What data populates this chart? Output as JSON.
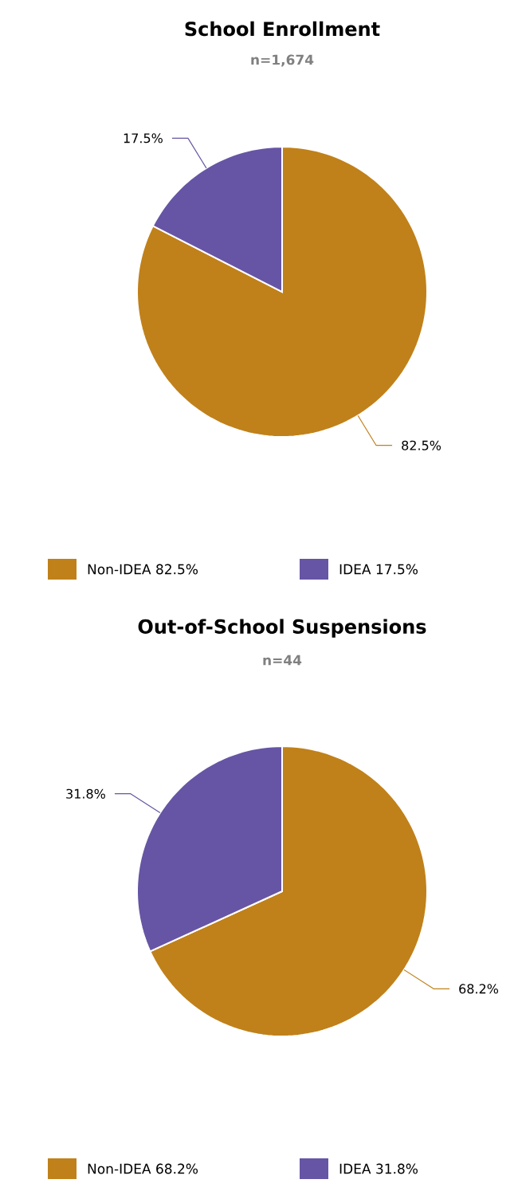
{
  "chart_data": [
    {
      "type": "pie",
      "title": "School Enrollment",
      "subtitle": "n=1,674",
      "categories": [
        "Non-IDEA",
        "IDEA"
      ],
      "values": [
        82.5,
        17.5
      ],
      "colors": [
        "#c0811a",
        "#6655a5"
      ],
      "value_labels": [
        "82.5%",
        "17.5%"
      ],
      "legend": "bottom"
    },
    {
      "type": "pie",
      "title": "Out-of-School Suspensions",
      "subtitle": "n=44",
      "categories": [
        "Non-IDEA",
        "IDEA"
      ],
      "values": [
        68.2,
        31.8
      ],
      "colors": [
        "#c0811a",
        "#6655a5"
      ],
      "value_labels": [
        "68.2%",
        "31.8%"
      ],
      "legend": "bottom"
    }
  ]
}
